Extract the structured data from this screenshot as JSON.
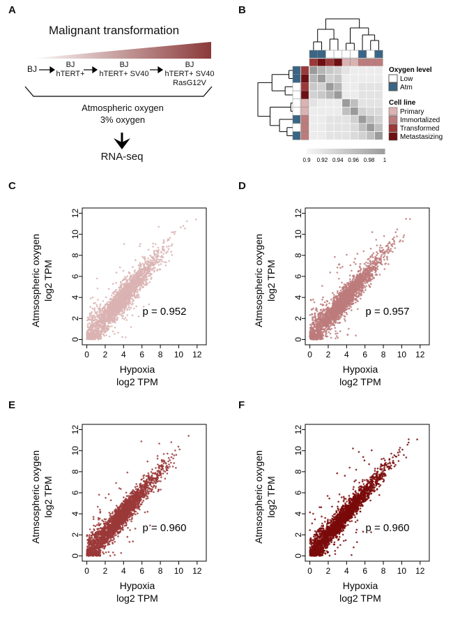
{
  "panels": {
    "a": "A",
    "b": "B",
    "c": "C",
    "d": "D",
    "e": "E",
    "f": "F"
  },
  "panel_a": {
    "title": "Malignant transformation",
    "stage0": "BJ",
    "stage1_l1": "BJ",
    "stage1_l2": "hTERT+",
    "stage2_l1": "BJ",
    "stage2_l2": "hTERT+ SV40",
    "stage3_l1": "BJ",
    "stage3_l2": "hTERT+ SV40",
    "stage3_l3": "RasG12V",
    "cond1": "Atmospheric oxygen",
    "cond2": "3% oxygen",
    "output": "RNA-seq",
    "gradient_from": "#ffffff",
    "gradient_to": "#8b3a3a"
  },
  "panel_b": {
    "legend_oxygen_title": "Oxygen level",
    "legend_low": "Low",
    "legend_atm": "Atm",
    "legend_cell_title": "Cell line",
    "legend_primary": "Primary",
    "legend_immortalized": "Immortalized",
    "legend_transformed": "Transformed",
    "legend_metastasizing": "Metastasizing",
    "colorbar_ticks": [
      "0.9",
      "0.92",
      "0.94",
      "0.96",
      "0.98",
      "1"
    ],
    "colors": {
      "low": "#ffffff",
      "atm": "#3a6585",
      "primary": "#dbb3b3",
      "immortalized": "#bd7b7b",
      "transformed": "#9b3838",
      "metastasizing": "#6e0f14"
    },
    "col_oxygen": [
      "atm",
      "atm",
      "low",
      "low",
      "low",
      "low",
      "atm",
      "low",
      "atm"
    ],
    "col_cell": [
      "transformed",
      "metastasizing",
      "transformed",
      "metastasizing",
      "primary",
      "primary",
      "immortalized",
      "immortalized",
      "immortalized"
    ],
    "row_oxygen": [
      "atm",
      "atm",
      "low",
      "low",
      "low",
      "low",
      "atm",
      "low",
      "atm"
    ],
    "row_cell": [
      "transformed",
      "metastasizing",
      "transformed",
      "metastasizing",
      "primary",
      "primary",
      "immortalized",
      "immortalized",
      "immortalized"
    ],
    "matrix": [
      [
        1.0,
        0.97,
        0.95,
        0.94,
        0.92,
        0.91,
        0.91,
        0.91,
        0.91
      ],
      [
        0.97,
        1.0,
        0.94,
        0.95,
        0.91,
        0.91,
        0.91,
        0.91,
        0.91
      ],
      [
        0.95,
        0.94,
        1.0,
        0.97,
        0.91,
        0.91,
        0.92,
        0.92,
        0.92
      ],
      [
        0.94,
        0.95,
        0.97,
        1.0,
        0.91,
        0.91,
        0.92,
        0.92,
        0.92
      ],
      [
        0.92,
        0.91,
        0.91,
        0.91,
        1.0,
        0.96,
        0.92,
        0.92,
        0.92
      ],
      [
        0.91,
        0.91,
        0.91,
        0.91,
        0.96,
        1.0,
        0.94,
        0.93,
        0.93
      ],
      [
        0.91,
        0.91,
        0.92,
        0.92,
        0.92,
        0.94,
        1.0,
        0.96,
        0.94
      ],
      [
        0.91,
        0.91,
        0.92,
        0.92,
        0.92,
        0.93,
        0.96,
        1.0,
        0.96
      ],
      [
        0.91,
        0.91,
        0.92,
        0.92,
        0.92,
        0.93,
        0.94,
        0.96,
        1.0
      ]
    ]
  },
  "chart_data": [
    {
      "type": "scatter",
      "panel": "C",
      "xlabel_l1": "Hypoxia",
      "xlabel_l2": "log2 TPM",
      "ylabel_l1": "Atmsospheric oxygen",
      "ylabel_l2": "log2 TPM",
      "xlim": [
        -0.5,
        13
      ],
      "ylim": [
        -0.5,
        12.5
      ],
      "xticks": [
        0,
        2,
        4,
        6,
        8,
        10,
        12
      ],
      "yticks": [
        0,
        2,
        4,
        6,
        8,
        10,
        12
      ],
      "annotation": "p = 0.952",
      "color": "#dbb3b3"
    },
    {
      "type": "scatter",
      "panel": "D",
      "xlabel_l1": "Hypoxia",
      "xlabel_l2": "log2 TPM",
      "ylabel_l1": "Atmsospheric oxygen",
      "ylabel_l2": "log2 TPM",
      "xlim": [
        -0.5,
        13
      ],
      "ylim": [
        -0.5,
        12.5
      ],
      "xticks": [
        0,
        2,
        4,
        6,
        8,
        10,
        12
      ],
      "yticks": [
        0,
        2,
        4,
        6,
        8,
        10,
        12
      ],
      "annotation": "p = 0.957",
      "color": "#bd7b7b"
    },
    {
      "type": "scatter",
      "panel": "E",
      "xlabel_l1": "Hypoxia",
      "xlabel_l2": "log2 TPM",
      "ylabel_l1": "Atmsospheric oxygen",
      "ylabel_l2": "log2 TPM",
      "xlim": [
        -0.5,
        13
      ],
      "ylim": [
        -0.5,
        12.5
      ],
      "xticks": [
        0,
        2,
        4,
        6,
        8,
        10,
        12
      ],
      "yticks": [
        0,
        2,
        4,
        6,
        8,
        10,
        12
      ],
      "annotation": "p = 0.960",
      "color": "#9b3838"
    },
    {
      "type": "scatter",
      "panel": "F",
      "xlabel_l1": "Hypoxia",
      "xlabel_l2": "log2 TPM",
      "ylabel_l1": "Atmsospheric oxygen",
      "ylabel_l2": "log2 TPM",
      "xlim": [
        -0.5,
        13
      ],
      "ylim": [
        -0.5,
        12.5
      ],
      "xticks": [
        0,
        2,
        4,
        6,
        8,
        10,
        12
      ],
      "yticks": [
        0,
        2,
        4,
        6,
        8,
        10,
        12
      ],
      "annotation": "p = 0.960",
      "color": "#7a0a0a"
    }
  ]
}
